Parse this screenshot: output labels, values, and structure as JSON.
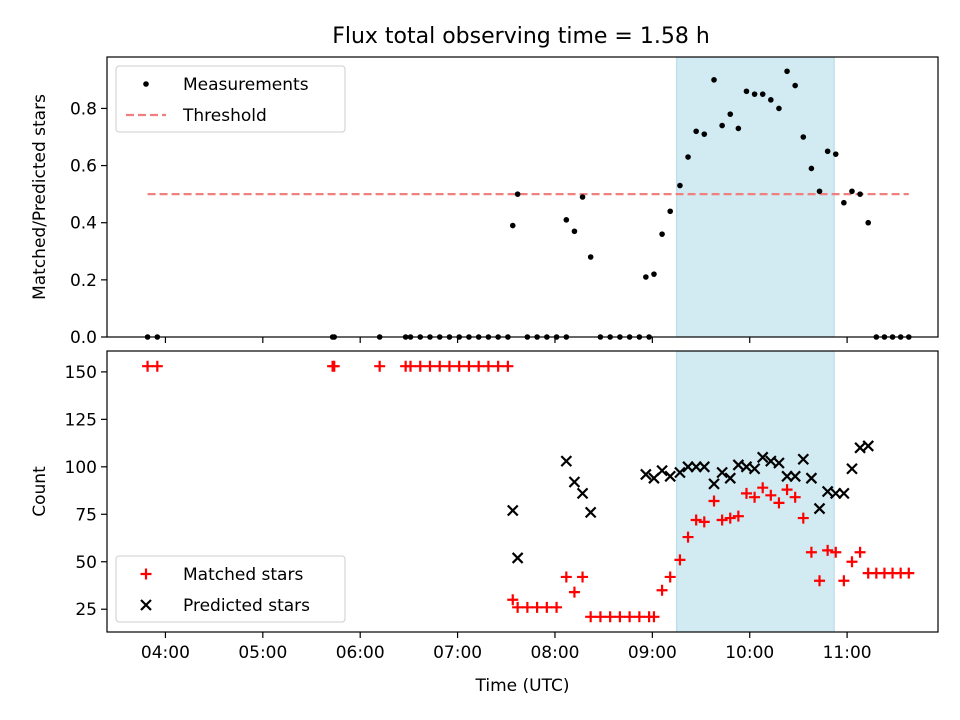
{
  "chart_data": [
    {
      "type": "scatter",
      "title": "Flux total observing time = 1.58 h",
      "xlabel": "",
      "ylabel": "Matched/Predicted stars",
      "xlim": [
        "03:24",
        "11:56"
      ],
      "ylim": [
        0,
        0.98
      ],
      "yticks": [
        0.0,
        0.2,
        0.4,
        0.6,
        0.8
      ],
      "ytick_labels": [
        "0.0",
        "0.2",
        "0.4",
        "0.6",
        "0.8"
      ],
      "highlight_span": [
        "09:15",
        "10:52"
      ],
      "legend": {
        "position": "upper-left",
        "entries": [
          "Measurements",
          "Threshold"
        ]
      },
      "threshold": {
        "name": "Threshold",
        "value": 0.5,
        "x_range": [
          "03:49",
          "11:38"
        ],
        "color": "#f08080"
      },
      "series": [
        {
          "name": "Measurements",
          "color": "#000000",
          "points": [
            [
              "03:49",
              0
            ],
            [
              "03:55",
              0
            ],
            [
              "05:43",
              0
            ],
            [
              "05:44",
              0
            ],
            [
              "06:12",
              0
            ],
            [
              "06:28",
              0
            ],
            [
              "06:31",
              0
            ],
            [
              "06:37",
              0
            ],
            [
              "06:43",
              0
            ],
            [
              "06:49",
              0
            ],
            [
              "06:55",
              0
            ],
            [
              "07:01",
              0
            ],
            [
              "07:07",
              0
            ],
            [
              "07:13",
              0
            ],
            [
              "07:19",
              0
            ],
            [
              "07:25",
              0
            ],
            [
              "07:31",
              0
            ],
            [
              "07:34",
              0.39
            ],
            [
              "07:37",
              0.5
            ],
            [
              "07:43",
              0
            ],
            [
              "07:49",
              0
            ],
            [
              "07:55",
              0
            ],
            [
              "08:01",
              0
            ],
            [
              "08:07",
              0
            ],
            [
              "08:07",
              0.41
            ],
            [
              "08:12",
              0.37
            ],
            [
              "08:17",
              0.49
            ],
            [
              "08:22",
              0.28
            ],
            [
              "08:28",
              0
            ],
            [
              "08:34",
              0
            ],
            [
              "08:40",
              0
            ],
            [
              "08:46",
              0
            ],
            [
              "08:52",
              0
            ],
            [
              "08:58",
              0
            ],
            [
              "08:56",
              0.21
            ],
            [
              "09:01",
              0.22
            ],
            [
              "09:06",
              0.36
            ],
            [
              "09:11",
              0.44
            ],
            [
              "09:17",
              0.53
            ],
            [
              "09:22",
              0.63
            ],
            [
              "09:27",
              0.72
            ],
            [
              "09:32",
              0.71
            ],
            [
              "09:38",
              0.9
            ],
            [
              "09:43",
              0.74
            ],
            [
              "09:48",
              0.78
            ],
            [
              "09:53",
              0.73
            ],
            [
              "09:58",
              0.86
            ],
            [
              "10:03",
              0.85
            ],
            [
              "10:08",
              0.85
            ],
            [
              "10:13",
              0.83
            ],
            [
              "10:18",
              0.8
            ],
            [
              "10:23",
              0.93
            ],
            [
              "10:28",
              0.88
            ],
            [
              "10:33",
              0.7
            ],
            [
              "10:38",
              0.59
            ],
            [
              "10:43",
              0.51
            ],
            [
              "10:48",
              0.65
            ],
            [
              "10:53",
              0.64
            ],
            [
              "10:58",
              0.47
            ],
            [
              "11:03",
              0.51
            ],
            [
              "11:08",
              0.5
            ],
            [
              "11:13",
              0.4
            ],
            [
              "11:18",
              0
            ],
            [
              "11:23",
              0
            ],
            [
              "11:28",
              0
            ],
            [
              "11:33",
              0
            ],
            [
              "11:38",
              0
            ]
          ]
        }
      ]
    },
    {
      "type": "scatter",
      "title": "",
      "xlabel": "Time (UTC)",
      "ylabel": "Count",
      "xlim": [
        "03:24",
        "11:56"
      ],
      "ylim": [
        13,
        161
      ],
      "yticks": [
        25,
        50,
        75,
        100,
        125,
        150
      ],
      "ytick_labels": [
        "25",
        "50",
        "75",
        "100",
        "125",
        "150"
      ],
      "xticks": [
        "04:00",
        "05:00",
        "06:00",
        "07:00",
        "08:00",
        "09:00",
        "10:00",
        "11:00"
      ],
      "xtick_labels": [
        "04:00",
        "05:00",
        "06:00",
        "07:00",
        "08:00",
        "09:00",
        "10:00",
        "11:00"
      ],
      "highlight_span": [
        "09:15",
        "10:52"
      ],
      "legend": {
        "position": "lower-left",
        "entries": [
          "Matched stars",
          "Predicted stars"
        ]
      },
      "series": [
        {
          "name": "Matched stars",
          "marker": "+",
          "color": "#ff0000",
          "points": [
            [
              "03:49",
              153
            ],
            [
              "03:55",
              153
            ],
            [
              "05:43",
              153
            ],
            [
              "05:44",
              153
            ],
            [
              "06:12",
              153
            ],
            [
              "06:28",
              153
            ],
            [
              "06:31",
              153
            ],
            [
              "06:37",
              153
            ],
            [
              "06:43",
              153
            ],
            [
              "06:49",
              153
            ],
            [
              "06:55",
              153
            ],
            [
              "07:01",
              153
            ],
            [
              "07:07",
              153
            ],
            [
              "07:13",
              153
            ],
            [
              "07:19",
              153
            ],
            [
              "07:25",
              153
            ],
            [
              "07:31",
              153
            ],
            [
              "07:34",
              30
            ],
            [
              "07:37",
              26
            ],
            [
              "07:43",
              26
            ],
            [
              "07:49",
              26
            ],
            [
              "07:55",
              26
            ],
            [
              "08:01",
              26
            ],
            [
              "08:07",
              42
            ],
            [
              "08:12",
              34
            ],
            [
              "08:17",
              42
            ],
            [
              "08:22",
              21
            ],
            [
              "08:28",
              21
            ],
            [
              "08:34",
              21
            ],
            [
              "08:40",
              21
            ],
            [
              "08:46",
              21
            ],
            [
              "08:52",
              21
            ],
            [
              "08:58",
              21
            ],
            [
              "09:01",
              21
            ],
            [
              "09:06",
              35
            ],
            [
              "09:11",
              42
            ],
            [
              "09:17",
              51
            ],
            [
              "09:22",
              63
            ],
            [
              "09:27",
              72
            ],
            [
              "09:32",
              71
            ],
            [
              "09:38",
              82
            ],
            [
              "09:43",
              72
            ],
            [
              "09:48",
              73
            ],
            [
              "09:53",
              74
            ],
            [
              "09:58",
              86
            ],
            [
              "10:03",
              84
            ],
            [
              "10:08",
              89
            ],
            [
              "10:13",
              85
            ],
            [
              "10:18",
              81
            ],
            [
              "10:23",
              88
            ],
            [
              "10:28",
              84
            ],
            [
              "10:33",
              73
            ],
            [
              "10:38",
              55
            ],
            [
              "10:43",
              40
            ],
            [
              "10:48",
              56
            ],
            [
              "10:53",
              55
            ],
            [
              "10:58",
              40
            ],
            [
              "11:03",
              50
            ],
            [
              "11:08",
              55
            ],
            [
              "11:13",
              44
            ],
            [
              "11:18",
              44
            ],
            [
              "11:23",
              44
            ],
            [
              "11:28",
              44
            ],
            [
              "11:33",
              44
            ],
            [
              "11:38",
              44
            ]
          ]
        },
        {
          "name": "Predicted stars",
          "marker": "x",
          "color": "#000000",
          "points": [
            [
              "07:34",
              77
            ],
            [
              "07:37",
              52
            ],
            [
              "08:07",
              103
            ],
            [
              "08:12",
              92
            ],
            [
              "08:17",
              86
            ],
            [
              "08:22",
              76
            ],
            [
              "08:56",
              96
            ],
            [
              "09:01",
              94
            ],
            [
              "09:06",
              98
            ],
            [
              "09:11",
              95
            ],
            [
              "09:17",
              97
            ],
            [
              "09:22",
              100
            ],
            [
              "09:27",
              100
            ],
            [
              "09:32",
              100
            ],
            [
              "09:38",
              91
            ],
            [
              "09:43",
              97
            ],
            [
              "09:48",
              94
            ],
            [
              "09:53",
              101
            ],
            [
              "09:58",
              100
            ],
            [
              "10:03",
              99
            ],
            [
              "10:08",
              105
            ],
            [
              "10:13",
              103
            ],
            [
              "10:18",
              102
            ],
            [
              "10:23",
              95
            ],
            [
              "10:28",
              95
            ],
            [
              "10:33",
              104
            ],
            [
              "10:38",
              94
            ],
            [
              "10:43",
              78
            ],
            [
              "10:48",
              87
            ],
            [
              "10:53",
              86
            ],
            [
              "10:58",
              86
            ],
            [
              "11:03",
              99
            ],
            [
              "11:08",
              110
            ],
            [
              "11:13",
              111
            ]
          ]
        }
      ]
    }
  ]
}
